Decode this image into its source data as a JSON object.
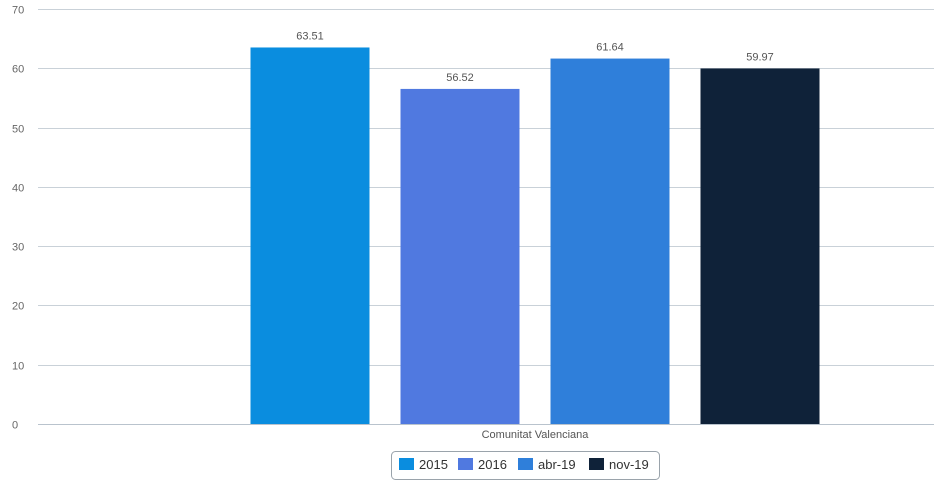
{
  "chart_data": {
    "type": "bar",
    "categories": [
      "Comunitat Valenciana"
    ],
    "series": [
      {
        "name": "2015",
        "values": [
          63.51
        ],
        "color": "#0a8ddf"
      },
      {
        "name": "2016",
        "values": [
          56.52
        ],
        "color": "#5079e0"
      },
      {
        "name": "abr-19",
        "values": [
          61.64
        ],
        "color": "#2f7fda"
      },
      {
        "name": "nov-19",
        "values": [
          59.97
        ],
        "color": "#0f2239"
      }
    ],
    "ylim": [
      0,
      70
    ],
    "yticks": [
      0,
      10,
      20,
      30,
      40,
      50,
      60,
      70
    ],
    "grid": true,
    "legend_position": "bottom-center",
    "data_labels": true
  }
}
